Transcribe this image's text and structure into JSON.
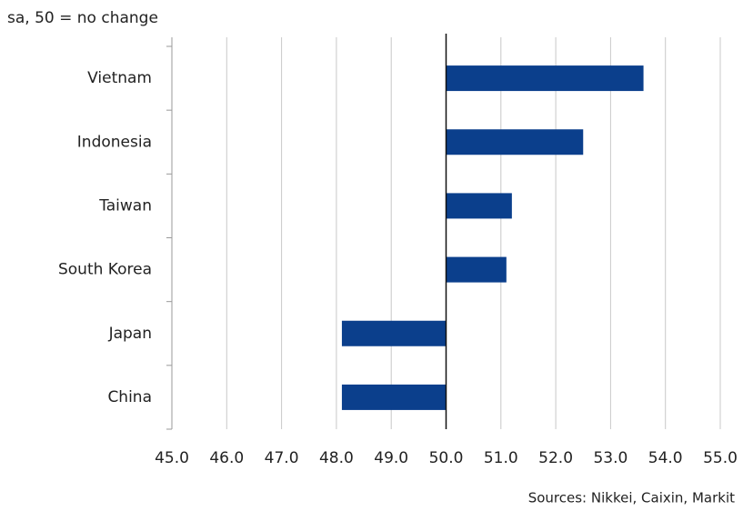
{
  "chart_data": {
    "type": "barh",
    "subtitle": "sa, 50 = no change",
    "source": "Sources: Nikkei, Caixin, Markit",
    "categories": [
      "Vietnam",
      "Indonesia",
      "Taiwan",
      "South Korea",
      "Japan",
      "China"
    ],
    "values": [
      53.6,
      52.5,
      51.2,
      51.1,
      48.1,
      48.1
    ],
    "color": "#0b3f8c",
    "baseline": 50,
    "xlim": [
      45,
      55
    ],
    "xticks": [
      {
        "value": 45,
        "label": "45.0"
      },
      {
        "value": 46,
        "label": "46.0"
      },
      {
        "value": 47,
        "label": "47.0"
      },
      {
        "value": 48,
        "label": "48.0"
      },
      {
        "value": 49,
        "label": "49.0"
      },
      {
        "value": 50,
        "label": "50.0"
      },
      {
        "value": 51,
        "label": "51.0"
      },
      {
        "value": 52,
        "label": "52.0"
      },
      {
        "value": 53,
        "label": "53.0"
      },
      {
        "value": 54,
        "label": "54.0"
      },
      {
        "value": 55,
        "label": "55.0"
      }
    ],
    "grid": true
  }
}
